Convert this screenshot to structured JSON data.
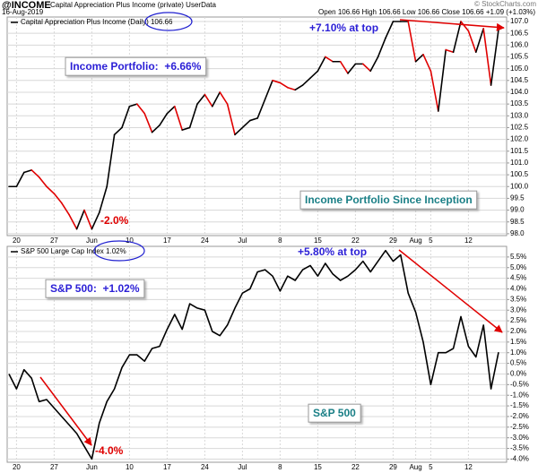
{
  "header": {
    "symbol": "@INCOME",
    "description": "Capital Appreciation Plus Income (private) UserData",
    "credit": "© StockCharts.com",
    "date": "16-Aug-2019",
    "quote": "Open 106.66 High 106.66 Low 106.66 Close 106.66 +1.09 (+1.03%)"
  },
  "chart_data": [
    {
      "type": "line",
      "categories": [
        null,
        "20",
        null,
        null,
        null,
        null,
        "27",
        null,
        null,
        null,
        null,
        "Jun",
        null,
        null,
        null,
        null,
        "10",
        null,
        null,
        null,
        null,
        "17",
        null,
        null,
        null,
        null,
        "24",
        null,
        null,
        null,
        null,
        "Jul",
        null,
        null,
        null,
        null,
        "8",
        null,
        null,
        null,
        null,
        "15",
        null,
        null,
        null,
        null,
        "22",
        null,
        null,
        null,
        null,
        "29",
        null,
        null,
        "Aug",
        null,
        "5",
        null,
        null,
        null,
        null,
        "12",
        null,
        null,
        null,
        null
      ],
      "series": [
        {
          "name": "Capital Appreciation Plus Income (Daily)",
          "legend_value": "106.66",
          "color": "#000000",
          "down_color": "#e00000",
          "values": [
            100.0,
            100.0,
            100.6,
            100.7,
            100.4,
            100.0,
            99.7,
            99.3,
            98.8,
            98.2,
            99.0,
            98.2,
            98.9,
            100.0,
            102.2,
            102.5,
            103.4,
            103.5,
            103.1,
            102.3,
            102.6,
            103.1,
            103.4,
            102.4,
            102.5,
            103.5,
            103.9,
            103.4,
            104.0,
            103.5,
            102.2,
            102.5,
            102.8,
            102.9,
            103.7,
            104.5,
            104.4,
            104.2,
            104.1,
            104.3,
            104.6,
            104.9,
            105.5,
            105.3,
            105.3,
            104.8,
            105.2,
            105.2,
            104.9,
            105.5,
            106.3,
            107.0,
            107.0,
            107.0,
            105.3,
            105.6,
            104.9,
            103.2,
            105.8,
            105.7,
            107.0,
            106.6,
            105.7,
            106.7,
            104.3,
            106.66
          ]
        }
      ],
      "ylim": [
        97.92,
        107.19
      ],
      "yticks": [
        {
          "value": 98,
          "label": "98.0"
        },
        98.5,
        {
          "value": 99,
          "label": "99.0"
        },
        99.5,
        {
          "value": 100,
          "label": "100.0"
        },
        100.5,
        {
          "value": 101,
          "label": "101.0"
        },
        101.5,
        {
          "value": 102,
          "label": "102.0"
        },
        102.5,
        {
          "value": 103,
          "label": "103.0"
        },
        103.5,
        {
          "value": 104,
          "label": "104.0"
        },
        104.5,
        {
          "value": 105,
          "label": "105.0"
        },
        105.5,
        {
          "value": 106,
          "label": "106.0"
        },
        106.5,
        {
          "value": 107,
          "label": "107.0"
        }
      ],
      "grid": true,
      "annotations": [
        {
          "text": "+7.10% at top",
          "color": "#2b1fd6"
        },
        {
          "text": "Income Portfolio:  +6.66%",
          "color": "#2b1fd6",
          "boxed": true
        },
        {
          "text": "-2.0%",
          "color": "#e00000"
        },
        {
          "text": "Income Portfolio Since Inception",
          "color": "#1a7f86",
          "boxed": true
        }
      ]
    },
    {
      "type": "line",
      "categories": [
        null,
        "20",
        null,
        null,
        null,
        null,
        "27",
        null,
        null,
        null,
        null,
        "Jun",
        null,
        null,
        null,
        null,
        "10",
        null,
        null,
        null,
        null,
        "17",
        null,
        null,
        null,
        null,
        "24",
        null,
        null,
        null,
        null,
        "Jul",
        null,
        null,
        null,
        null,
        "8",
        null,
        null,
        null,
        null,
        "15",
        null,
        null,
        null,
        null,
        "22",
        null,
        null,
        null,
        null,
        "29",
        null,
        null,
        "Aug",
        null,
        "5",
        null,
        null,
        null,
        null,
        "12",
        null,
        null,
        null,
        null
      ],
      "series": [
        {
          "name": "S&P 500 Large Cap Index",
          "legend_value": "1.02%",
          "color": "#000000",
          "values": [
            0.0,
            -0.7,
            0.2,
            -0.2,
            -1.3,
            -1.2,
            -1.6,
            -2.0,
            -2.4,
            -2.8,
            -3.4,
            -4.0,
            -2.3,
            -1.3,
            -0.7,
            0.3,
            0.9,
            0.9,
            0.6,
            1.2,
            1.3,
            2.1,
            2.8,
            2.1,
            3.3,
            3.1,
            3.0,
            2.0,
            1.8,
            2.3,
            3.1,
            3.8,
            4.0,
            4.8,
            4.9,
            4.6,
            3.9,
            4.6,
            4.4,
            4.9,
            5.1,
            4.6,
            5.2,
            4.7,
            4.4,
            4.6,
            4.9,
            5.3,
            4.8,
            5.3,
            5.8,
            5.3,
            5.6,
            3.8,
            2.9,
            1.5,
            -0.5,
            1.0,
            1.0,
            1.2,
            2.7,
            1.3,
            0.8,
            2.3,
            -0.7,
            1.02
          ]
        }
      ],
      "ylim": [
        -4.15,
        6.0
      ],
      "yticks": [
        {
          "value": -4,
          "label": "-4.0%"
        },
        {
          "value": -3.5,
          "label": "-3.5%"
        },
        {
          "value": -3,
          "label": "-3.0%"
        },
        {
          "value": -2.5,
          "label": "-2.5%"
        },
        {
          "value": -2,
          "label": "-2.0%"
        },
        {
          "value": -1.5,
          "label": "-1.5%"
        },
        {
          "value": -1,
          "label": "-1.0%"
        },
        {
          "value": -0.5,
          "label": "-0.5%"
        },
        {
          "value": 0,
          "label": "0.0%"
        },
        {
          "value": 0.5,
          "label": "0.5%"
        },
        {
          "value": 1,
          "label": "1.0%"
        },
        {
          "value": 1.5,
          "label": "1.5%"
        },
        {
          "value": 2,
          "label": "2.0%"
        },
        {
          "value": 2.5,
          "label": "2.5%"
        },
        {
          "value": 3,
          "label": "3.0%"
        },
        {
          "value": 3.5,
          "label": "3.5%"
        },
        {
          "value": 4,
          "label": "4.0%"
        },
        {
          "value": 4.5,
          "label": "4.5%"
        },
        {
          "value": 5,
          "label": "5.0%"
        },
        {
          "value": 5.5,
          "label": "5.5%"
        }
      ],
      "grid": true,
      "annotations": [
        {
          "text": "+5.80% at top",
          "color": "#2b1fd6"
        },
        {
          "text": "S&P 500:  +1.02%",
          "color": "#2b1fd6",
          "boxed": true
        },
        {
          "text": "-4.0%",
          "color": "#e00000"
        },
        {
          "text": "S&P 500",
          "color": "#1a7f86",
          "boxed": true
        }
      ]
    }
  ]
}
